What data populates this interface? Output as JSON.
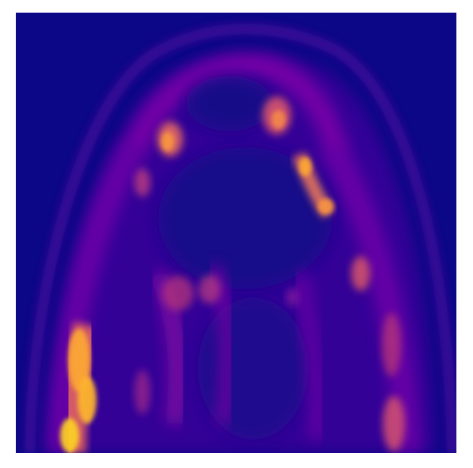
{
  "image": {
    "kind": "medical-scan-heatmap",
    "colormap": "plasma",
    "colors": {
      "background": "#0c0786",
      "low": "#2a0594",
      "mid_low": "#5c01a6",
      "mid": "#9c179e",
      "mid_high": "#cc4778",
      "high": "#ed7953",
      "peak": "#fdb42f",
      "max": "#f0f921"
    }
  }
}
